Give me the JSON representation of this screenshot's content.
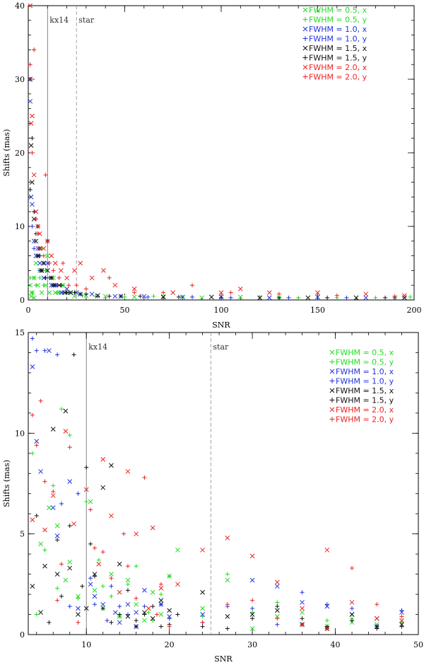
{
  "chart_data": [
    {
      "type": "scatter",
      "xlabel": "SNR",
      "ylabel": "Shifts (mas)",
      "xlim": [
        0,
        200
      ],
      "ylim": [
        0,
        40
      ],
      "xticks": [
        0,
        50,
        100,
        150,
        200
      ],
      "yticks": [
        0,
        10,
        20,
        30,
        40
      ],
      "grid": false,
      "legend": "top-right",
      "annotations": [
        {
          "text": "kx14",
          "x": 10,
          "style": "solid"
        },
        {
          "text": "star",
          "x": 25,
          "style": "dashed"
        }
      ],
      "series": [
        {
          "name": "FWHM = 0.5, x",
          "color": "#22dd22",
          "marker": "x",
          "x": [
            1,
            1.5,
            2,
            3,
            3,
            4,
            5,
            6,
            7,
            8,
            9,
            10,
            11,
            12,
            13,
            14,
            16,
            18,
            20,
            24,
            30,
            40,
            55,
            70,
            90,
            110,
            130,
            150,
            170,
            190
          ],
          "y": [
            2,
            0.5,
            1,
            3,
            0.3,
            5,
            2,
            4,
            1,
            3,
            2,
            6,
            1,
            2,
            3,
            1,
            1,
            2,
            1,
            0.5,
            0.6,
            0.5,
            0.4,
            0.5,
            0.3,
            0.4,
            0.3,
            0.4,
            0.3,
            0.3
          ]
        },
        {
          "name": "FWHM = 0.5, y",
          "color": "#22dd22",
          "marker": "+",
          "x": [
            1,
            2,
            3,
            3,
            4,
            5,
            6,
            7,
            8,
            9,
            11,
            13,
            15,
            18,
            22,
            28,
            35,
            50,
            65,
            80,
            100,
            120,
            140,
            160,
            180,
            198
          ],
          "y": [
            3,
            1,
            34,
            3,
            2,
            6,
            3,
            7,
            2,
            4,
            3,
            2,
            1,
            2,
            1,
            0.6,
            0.5,
            0.4,
            0.5,
            0.4,
            0.3,
            0.4,
            0.3,
            0.3,
            0.3,
            0.4
          ]
        },
        {
          "name": "FWHM = 1.0, x",
          "color": "#2233dd",
          "marker": "x",
          "x": [
            1,
            1.5,
            2,
            3,
            4,
            4,
            5,
            6,
            7,
            8,
            10,
            12,
            14,
            17,
            20,
            25,
            33,
            45,
            60,
            80,
            100,
            125,
            150,
            175,
            195
          ],
          "y": [
            27,
            14,
            13,
            8,
            12,
            6,
            7,
            5,
            4,
            3,
            5,
            2,
            2,
            1,
            1.5,
            1,
            0.8,
            0.5,
            0.5,
            0.4,
            0.4,
            0.3,
            0.4,
            0.3,
            0.3
          ]
        },
        {
          "name": "FWHM = 1.0, y",
          "color": "#2233dd",
          "marker": "+",
          "x": [
            1,
            2,
            3,
            4,
            5,
            6,
            8,
            9,
            11,
            13,
            15,
            18,
            21,
            27,
            36,
            48,
            62,
            85,
            105,
            135,
            165,
            190
          ],
          "y": [
            30,
            10,
            7,
            11,
            6,
            4,
            5,
            3,
            3,
            2,
            2,
            1,
            1,
            0.8,
            0.5,
            0.5,
            0.4,
            0.4,
            0.3,
            0.3,
            0.3,
            0.3
          ]
        },
        {
          "name": "FWHM = 1.5, x",
          "color": "#111111",
          "marker": "x",
          "x": [
            1,
            1.5,
            2,
            3,
            4,
            5,
            6,
            7,
            8,
            10,
            12,
            13,
            16,
            19,
            22,
            27,
            36,
            48,
            70,
            95,
            120,
            145,
            170,
            195
          ],
          "y": [
            30,
            21,
            16,
            11,
            8,
            6,
            7,
            4,
            5,
            4,
            3,
            2,
            2,
            1,
            1,
            0.8,
            0.6,
            0.5,
            0.4,
            0.4,
            0.3,
            0.3,
            0.3,
            0.3
          ]
        },
        {
          "name": "FWHM = 1.5, y",
          "color": "#111111",
          "marker": "+",
          "x": [
            1,
            2,
            3,
            4,
            5,
            6,
            7,
            9,
            10,
            12,
            14,
            17,
            20,
            24,
            30,
            42,
            58,
            78,
            100,
            130,
            155,
            185
          ],
          "y": [
            15,
            22,
            12,
            9,
            10,
            6,
            4,
            3,
            8,
            3,
            2,
            2,
            1,
            1,
            0.8,
            0.5,
            0.5,
            0.4,
            0.3,
            0.3,
            0.3,
            0.3
          ]
        },
        {
          "name": "FWHM = 2.0, x",
          "color": "#ee2222",
          "marker": "x",
          "x": [
            1,
            1.5,
            2,
            3,
            4,
            5,
            6,
            8,
            10,
            12,
            14,
            17,
            20,
            24,
            27,
            33,
            39,
            45,
            55,
            75,
            100,
            110,
            125,
            150,
            175,
            195
          ],
          "y": [
            40,
            24,
            25,
            17,
            12,
            10,
            9,
            7,
            8,
            6,
            5,
            4,
            3,
            4,
            5,
            3,
            4,
            2,
            1.5,
            1,
            1,
            1.5,
            1,
            1,
            0.8,
            0.6
          ]
        },
        {
          "name": "FWHM = 2.0, y",
          "color": "#ee2222",
          "marker": "+",
          "x": [
            1,
            1.5,
            2,
            3,
            4,
            5,
            6,
            8,
            9,
            11,
            13,
            16,
            18,
            21,
            25,
            30,
            42,
            55,
            70,
            85,
            105,
            130,
            160,
            190
          ],
          "y": [
            32,
            30,
            20,
            34,
            11,
            9,
            7,
            6,
            17,
            5,
            4,
            3,
            5,
            2,
            2,
            1.5,
            3,
            1,
            1,
            2,
            1,
            0.8,
            0.6,
            0.5
          ]
        }
      ]
    },
    {
      "type": "scatter",
      "xlabel": "SNR",
      "ylabel": "Shifts (mas)",
      "xlim": [
        3,
        50
      ],
      "ylim": [
        0,
        15
      ],
      "xticks": [
        10,
        20,
        30,
        40,
        50
      ],
      "yticks": [
        0,
        5,
        10,
        15
      ],
      "grid": false,
      "legend": "top-right",
      "annotations": [
        {
          "text": "kx14",
          "x": 10,
          "style": "solid"
        },
        {
          "text": "star",
          "x": 25,
          "style": "dashed"
        }
      ],
      "series": [
        {
          "name": "FWHM = 0.5, x",
          "color": "#22dd22",
          "marker": "x",
          "x": [
            3.5,
            4.5,
            5.5,
            6.5,
            7.5,
            8,
            9,
            10.5,
            11,
            12,
            13,
            14,
            15,
            16,
            17,
            18,
            19,
            20,
            21,
            24,
            27,
            30,
            33,
            36,
            39,
            42,
            45,
            48
          ],
          "y": [
            2.4,
            4.5,
            6.3,
            5.4,
            2.7,
            3.6,
            1.9,
            6.6,
            2.2,
            1.3,
            3.0,
            0.9,
            2.7,
            1.5,
            0.7,
            2.1,
            1.0,
            2.9,
            4.2,
            1.3,
            2.7,
            0.3,
            0.9,
            1.1,
            0.4,
            0.6,
            0.5,
            0.7
          ]
        },
        {
          "name": "FWHM = 0.5, y",
          "color": "#22dd22",
          "marker": "+",
          "x": [
            3.5,
            4,
            5,
            6,
            6.5,
            7,
            8,
            9,
            10,
            11.5,
            12,
            13,
            14,
            15,
            16,
            17.5,
            18,
            19,
            20,
            24,
            27,
            30,
            33,
            36,
            39,
            42,
            48
          ],
          "y": [
            9.0,
            1.0,
            4.2,
            7.4,
            2.3,
            11.2,
            9.9,
            1.8,
            6.6,
            3.7,
            2.4,
            1.9,
            0.9,
            2.5,
            3.4,
            1.1,
            0.7,
            2.0,
            2.9,
            0.9,
            3.0,
            1.1,
            1.6,
            0.5,
            0.7,
            0.8,
            0.6
          ]
        },
        {
          "name": "FWHM = 1.0, x",
          "color": "#2233dd",
          "marker": "x",
          "x": [
            3.5,
            4,
            4.5,
            5.5,
            6,
            6.5,
            8,
            9,
            10.5,
            11,
            12,
            13.5,
            14,
            15,
            16,
            17,
            19,
            20,
            24,
            30,
            33,
            36,
            39,
            42,
            45,
            48
          ],
          "y": [
            13.3,
            9.6,
            8.1,
            14.1,
            6.3,
            4.9,
            7.6,
            1.3,
            2.5,
            1.9,
            1.5,
            1.1,
            0.6,
            1.5,
            1.1,
            2.2,
            1.5,
            0.9,
            1.0,
            2.7,
            2.4,
            1.6,
            1.4,
            1.0,
            0.8,
            1.1
          ]
        },
        {
          "name": "FWHM = 1.0, y",
          "color": "#2233dd",
          "marker": "+",
          "x": [
            3.5,
            4,
            5,
            6.5,
            7,
            8,
            9,
            10.5,
            11,
            12.5,
            13,
            14,
            15,
            16,
            17,
            18.5,
            19,
            20,
            24,
            27,
            30,
            33,
            36,
            39,
            42,
            45,
            48
          ],
          "y": [
            14.7,
            14.1,
            14.1,
            13.9,
            6.5,
            1.4,
            7.0,
            2.8,
            1.5,
            0.7,
            2.4,
            1.4,
            1.0,
            0.4,
            1.4,
            1.0,
            1.5,
            0.8,
            0.6,
            1.4,
            1.3,
            0.5,
            2.1,
            1.5,
            1.3,
            0.4,
            1.2
          ]
        },
        {
          "name": "FWHM = 1.5, x",
          "color": "#111111",
          "marker": "x",
          "x": [
            3.5,
            4.5,
            5,
            6,
            6.5,
            7.5,
            8,
            9,
            10,
            11,
            12,
            13,
            14,
            15,
            16,
            17,
            18,
            19,
            20,
            24,
            27,
            30,
            33,
            36,
            39,
            42,
            45,
            48
          ],
          "y": [
            2.4,
            1.1,
            3.4,
            10.2,
            3.0,
            11.1,
            3.3,
            1.0,
            1.3,
            3.0,
            7.3,
            8.4,
            3.5,
            0.9,
            0.4,
            1.1,
            0.8,
            1.7,
            1.2,
            2.1,
            0.9,
            1.0,
            1.2,
            0.5,
            0.3,
            1.0,
            0.4,
            0.5
          ]
        },
        {
          "name": "FWHM = 1.5, y",
          "color": "#111111",
          "marker": "+",
          "x": [
            4,
            5.5,
            6.5,
            7,
            8,
            8.5,
            9.5,
            10,
            10.5,
            11,
            12,
            13,
            14,
            15,
            16,
            17,
            18,
            19,
            20,
            21,
            24,
            27,
            30,
            33,
            36,
            39,
            42,
            45,
            48
          ],
          "y": [
            5.9,
            0.6,
            4.7,
            1.9,
            5.4,
            13.9,
            2.4,
            8.3,
            4.5,
            2.9,
            1.3,
            0.6,
            1.0,
            2.2,
            0.7,
            1.0,
            1.4,
            0.4,
            0.5,
            1.0,
            0.4,
            0.3,
            0.8,
            1.4,
            0.8,
            0.4,
            0.7,
            0.3,
            0.4
          ]
        },
        {
          "name": "FWHM = 2.0, x",
          "color": "#ee2222",
          "marker": "x",
          "x": [
            3.5,
            5,
            6,
            7.5,
            8.5,
            10,
            11.5,
            12,
            13,
            14,
            15,
            16,
            17.5,
            18,
            19,
            21,
            24,
            27,
            30,
            33,
            36,
            39,
            42,
            45,
            48
          ],
          "y": [
            5.7,
            5.2,
            6.9,
            10.1,
            5.5,
            7.2,
            3.5,
            8.7,
            5.9,
            2.1,
            8.1,
            5.0,
            1.3,
            5.3,
            2.3,
            2.5,
            4.2,
            4.8,
            3.9,
            2.6,
            1.3,
            4.2,
            1.6,
            0.8,
            0.7
          ]
        },
        {
          "name": "FWHM = 2.0, y",
          "color": "#ee2222",
          "marker": "+",
          "x": [
            3.5,
            4,
            4.5,
            5,
            6,
            6.5,
            7,
            8,
            9,
            10.5,
            11,
            12,
            13,
            14.5,
            15,
            16,
            17,
            18.5,
            19,
            20,
            24,
            27,
            30,
            33,
            36,
            39,
            42,
            45,
            48
          ],
          "y": [
            10.9,
            9.4,
            11.6,
            7.6,
            7.1,
            1.7,
            3.5,
            9.3,
            0.6,
            6.2,
            4.3,
            4.1,
            2.8,
            5.0,
            3.4,
            1.8,
            7.8,
            1.0,
            2.5,
            0.4,
            0.6,
            1.5,
            1.7,
            0.8,
            0.5,
            0.3,
            3.3,
            1.5,
            0.9
          ]
        }
      ]
    }
  ]
}
